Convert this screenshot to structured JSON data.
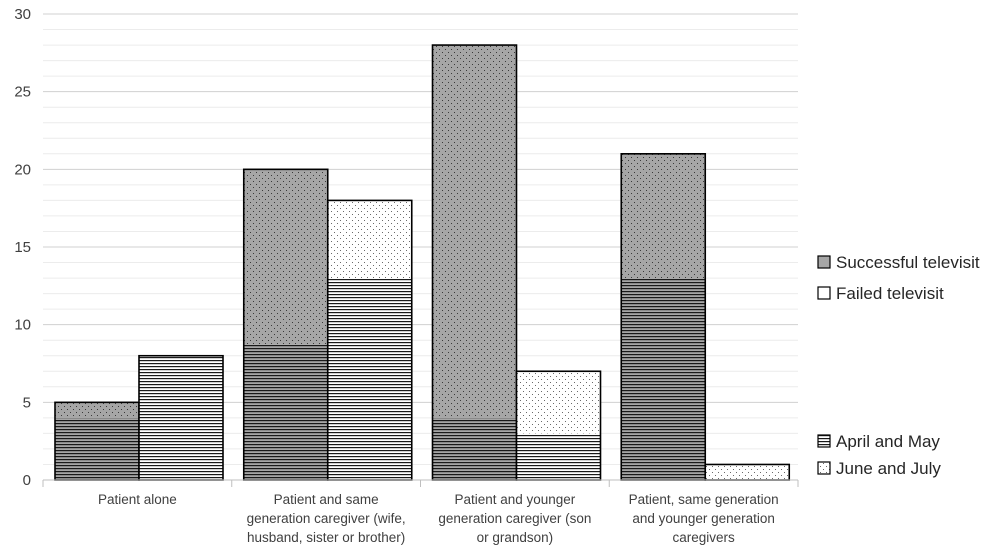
{
  "chart_data": {
    "type": "bar",
    "subtype": "stacked grouped",
    "title": "",
    "xlabel": "",
    "ylabel": "",
    "ylim": [
      0,
      30
    ],
    "yticks": [
      0,
      5,
      10,
      15,
      20,
      25,
      30
    ],
    "minor_grid_step": 1,
    "grid": true,
    "categories": [
      [
        "Patient alone"
      ],
      [
        "Patient and same",
        "generation caregiver (wife,",
        "husband, sister or brother)"
      ],
      [
        "Patient and younger",
        "generation caregiver (son",
        "or grandson)"
      ],
      [
        "Patient, same generation",
        "and younger generation",
        "caregivers"
      ]
    ],
    "groups": [
      {
        "name": "Successful televisit",
        "fill": "#a6a6a6"
      },
      {
        "name": "Failed televisit",
        "fill": "#ffffff"
      }
    ],
    "stack_segments": [
      {
        "name": "April and May",
        "pattern": "horizontal-lines"
      },
      {
        "name": "June and July",
        "pattern": "dots"
      }
    ],
    "series": [
      {
        "group": "Successful televisit",
        "segment": "April and May",
        "values": [
          4,
          8.7,
          4,
          13
        ]
      },
      {
        "group": "Successful televisit",
        "segment": "June and July",
        "values": [
          1,
          11.3,
          24,
          8
        ]
      },
      {
        "group": "Failed televisit",
        "segment": "April and May",
        "values": [
          8,
          13,
          3,
          0
        ]
      },
      {
        "group": "Failed televisit",
        "segment": "June and July",
        "values": [
          0,
          5,
          4,
          1
        ]
      }
    ],
    "legend": {
      "placement": "right",
      "entries": [
        {
          "label": "Successful televisit",
          "swatch": "solid-gray"
        },
        {
          "label": "Failed televisit",
          "swatch": "solid-white"
        },
        {
          "label": "April and May",
          "swatch": "horizontal-lines"
        },
        {
          "label": "June and July",
          "swatch": "dots"
        }
      ]
    }
  }
}
